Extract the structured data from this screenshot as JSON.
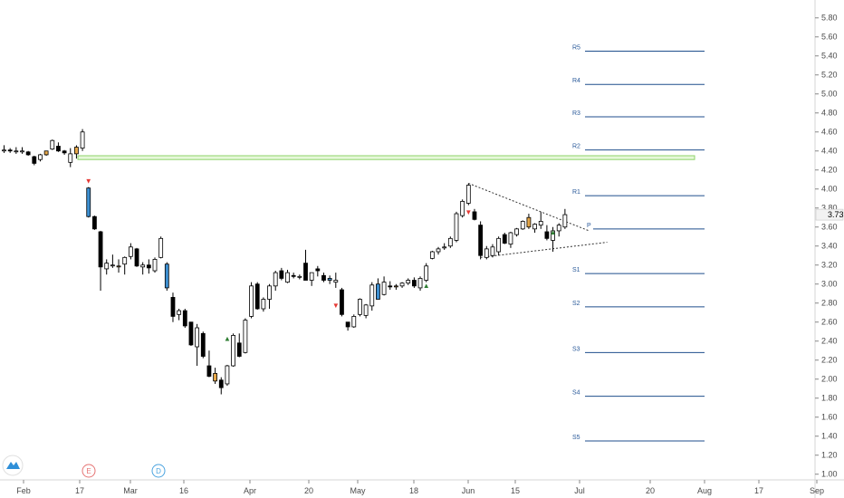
{
  "chart_data": {
    "type": "candlestick",
    "y_axis": {
      "ticks": [
        1.0,
        1.2,
        1.4,
        1.6,
        1.8,
        2.0,
        2.2,
        2.4,
        2.6,
        2.8,
        3.0,
        3.2,
        3.4,
        3.6,
        3.8,
        4.0,
        4.2,
        4.4,
        4.6,
        4.8,
        5.0,
        5.2,
        5.4,
        5.6,
        5.8
      ],
      "tick_labels": [
        "1.00",
        "1.20",
        "1.40",
        "1.60",
        "1.80",
        "2.00",
        "2.20",
        "2.40",
        "2.60",
        "2.80",
        "3.00",
        "3.20",
        "3.40",
        "3.60",
        "3.80",
        "4.00",
        "4.20",
        "4.40",
        "4.60",
        "4.80",
        "5.00",
        "5.20",
        "5.40",
        "5.60",
        "5.80"
      ],
      "ylim": [
        0.94,
        5.95
      ],
      "position": "right"
    },
    "x_axis": {
      "tick_labels": [
        "Feb",
        "17",
        "Mar",
        "16",
        "Apr",
        "20",
        "May",
        "18",
        "Jun",
        "15",
        "Jul",
        "20",
        "Aug",
        "17",
        "Sep"
      ]
    },
    "last_price": {
      "value": 3.73,
      "label": "3.73"
    },
    "pivots": [
      {
        "name": "R5",
        "value": 5.45
      },
      {
        "name": "R4",
        "value": 5.1
      },
      {
        "name": "R3",
        "value": 4.76
      },
      {
        "name": "R2",
        "value": 4.41
      },
      {
        "name": "R1",
        "value": 3.93
      },
      {
        "name": "P",
        "value": 3.58
      },
      {
        "name": "S1",
        "value": 3.11
      },
      {
        "name": "S2",
        "value": 2.76
      },
      {
        "name": "S3",
        "value": 2.28
      },
      {
        "name": "S4",
        "value": 1.82
      },
      {
        "name": "S5",
        "value": 1.35
      }
    ],
    "resistance_zone": {
      "from": 4.31,
      "to": 4.35
    },
    "trendlines": [
      {
        "from": {
          "bar": 77,
          "value": 4.06
        },
        "to": {
          "bar": 97,
          "value": 3.56
        }
      },
      {
        "from": {
          "bar": 79,
          "value": 3.28
        },
        "to": {
          "bar": 100,
          "value": 3.44
        }
      }
    ],
    "candles": [
      [
        4.4,
        4.46,
        4.38,
        4.41
      ],
      [
        4.41,
        4.43,
        4.38,
        4.4
      ],
      [
        4.4,
        4.44,
        4.37,
        4.4
      ],
      [
        4.39,
        4.44,
        4.37,
        4.4
      ],
      [
        4.39,
        4.4,
        4.35,
        4.36
      ],
      [
        4.34,
        4.35,
        4.25,
        4.27
      ],
      [
        4.31,
        4.37,
        4.29,
        4.36
      ],
      [
        4.36,
        4.4,
        4.35,
        4.4
      ],
      [
        4.42,
        4.52,
        4.41,
        4.51
      ],
      [
        4.45,
        4.49,
        4.39,
        4.4
      ],
      [
        4.4,
        4.41,
        4.36,
        4.38
      ],
      [
        4.28,
        4.43,
        4.23,
        4.37
      ],
      [
        4.37,
        4.46,
        4.32,
        4.44
      ],
      [
        4.43,
        4.63,
        4.4,
        4.6
      ],
      [
        4.01,
        4.02,
        3.7,
        3.71
      ],
      [
        3.71,
        3.72,
        3.57,
        3.58
      ],
      [
        3.55,
        3.56,
        2.93,
        3.18
      ],
      [
        3.16,
        3.26,
        3.1,
        3.22
      ],
      [
        3.2,
        3.31,
        3.17,
        3.2
      ],
      [
        3.18,
        3.26,
        3.12,
        3.19
      ],
      [
        3.21,
        3.29,
        3.1,
        3.28
      ],
      [
        3.29,
        3.43,
        3.26,
        3.39
      ],
      [
        3.37,
        3.38,
        3.18,
        3.19
      ],
      [
        3.18,
        3.23,
        3.1,
        3.2
      ],
      [
        3.2,
        3.26,
        3.11,
        3.17
      ],
      [
        3.14,
        3.28,
        3.12,
        3.26
      ],
      [
        3.28,
        3.5,
        3.27,
        3.48
      ],
      [
        3.21,
        3.23,
        2.93,
        2.96
      ],
      [
        2.86,
        2.91,
        2.6,
        2.66
      ],
      [
        2.68,
        2.74,
        2.62,
        2.72
      ],
      [
        2.72,
        2.74,
        2.54,
        2.56
      ],
      [
        2.6,
        2.6,
        2.35,
        2.36
      ],
      [
        2.34,
        2.58,
        2.14,
        2.54
      ],
      [
        2.48,
        2.5,
        2.22,
        2.24
      ],
      [
        2.14,
        2.3,
        2.02,
        2.03
      ],
      [
        2.06,
        2.12,
        1.95,
        1.98
      ],
      [
        1.99,
        2.02,
        1.84,
        1.91
      ],
      [
        1.95,
        2.15,
        1.93,
        2.14
      ],
      [
        2.14,
        2.48,
        2.13,
        2.46
      ],
      [
        2.38,
        2.48,
        2.23,
        2.24
      ],
      [
        2.28,
        2.64,
        2.27,
        2.62
      ],
      [
        2.66,
        3.02,
        2.64,
        2.98
      ],
      [
        3.0,
        3.02,
        2.73,
        2.74
      ],
      [
        2.74,
        2.86,
        2.71,
        2.84
      ],
      [
        2.84,
        3.0,
        2.74,
        2.98
      ],
      [
        2.98,
        3.14,
        2.93,
        3.12
      ],
      [
        3.14,
        3.17,
        3.04,
        3.06
      ],
      [
        3.02,
        3.15,
        3.01,
        3.12
      ],
      [
        3.09,
        3.12,
        3.06,
        3.08
      ],
      [
        3.08,
        3.1,
        3.05,
        3.08
      ],
      [
        3.22,
        3.36,
        3.04,
        3.04
      ],
      [
        3.04,
        3.1,
        2.98,
        3.12
      ],
      [
        3.16,
        3.19,
        3.08,
        3.14
      ],
      [
        3.09,
        3.12,
        3.02,
        3.04
      ],
      [
        3.04,
        3.09,
        3.0,
        3.06
      ],
      [
        3.02,
        3.12,
        2.96,
        3.04
      ],
      [
        2.94,
        2.96,
        2.66,
        2.68
      ],
      [
        2.6,
        2.6,
        2.51,
        2.55
      ],
      [
        2.55,
        2.68,
        2.54,
        2.66
      ],
      [
        2.68,
        2.85,
        2.66,
        2.84
      ],
      [
        2.67,
        2.79,
        2.64,
        2.78
      ],
      [
        2.77,
        3.02,
        2.72,
        2.99
      ],
      [
        3.0,
        3.06,
        2.84,
        2.84
      ],
      [
        2.89,
        3.08,
        2.88,
        3.02
      ],
      [
        2.98,
        3.03,
        2.94,
        2.97
      ],
      [
        2.97,
        3.0,
        2.94,
        2.98
      ],
      [
        2.98,
        3.02,
        2.96,
        3.01
      ],
      [
        3.01,
        3.06,
        2.99,
        3.04
      ],
      [
        3.04,
        3.07,
        2.96,
        2.98
      ],
      [
        2.96,
        3.08,
        2.93,
        3.06
      ],
      [
        3.04,
        3.22,
        3.02,
        3.19
      ],
      [
        3.27,
        3.35,
        3.26,
        3.34
      ],
      [
        3.34,
        3.39,
        3.31,
        3.37
      ],
      [
        3.38,
        3.43,
        3.36,
        3.39
      ],
      [
        3.4,
        3.5,
        3.38,
        3.48
      ],
      [
        3.46,
        3.76,
        3.44,
        3.74
      ],
      [
        3.72,
        3.89,
        3.7,
        3.87
      ],
      [
        3.85,
        4.06,
        3.83,
        4.04
      ],
      [
        3.76,
        3.79,
        3.67,
        3.68
      ],
      [
        3.62,
        3.66,
        3.26,
        3.3
      ],
      [
        3.28,
        3.4,
        3.26,
        3.37
      ],
      [
        3.3,
        3.42,
        3.28,
        3.39
      ],
      [
        3.34,
        3.5,
        3.3,
        3.48
      ],
      [
        3.52,
        3.54,
        3.42,
        3.43
      ],
      [
        3.42,
        3.55,
        3.38,
        3.54
      ],
      [
        3.52,
        3.59,
        3.5,
        3.58
      ],
      [
        3.58,
        3.67,
        3.57,
        3.66
      ],
      [
        3.7,
        3.74,
        3.58,
        3.6
      ],
      [
        3.58,
        3.64,
        3.54,
        3.63
      ],
      [
        3.62,
        3.76,
        3.58,
        3.66
      ],
      [
        3.55,
        3.62,
        3.46,
        3.48
      ],
      [
        3.46,
        3.6,
        3.34,
        3.56
      ],
      [
        3.56,
        3.64,
        3.5,
        3.62
      ],
      [
        3.6,
        3.79,
        3.58,
        3.73
      ]
    ],
    "candle_colors": {
      "up": "#ffffff",
      "down": "#000000",
      "highlight_orange": "#e6a84a",
      "highlight_blue": "#3d8fd1",
      "wick": "#000000"
    },
    "orange_candles": [
      7,
      12,
      19,
      35,
      65,
      87,
      94
    ],
    "blue_candles": [
      14,
      27,
      54,
      62
    ],
    "signal_markers": [
      {
        "bar": 14,
        "value": 4.06,
        "symbol": "▼",
        "color": "#e53935"
      },
      {
        "bar": 55,
        "value": 2.75,
        "symbol": "▼",
        "color": "#e53935"
      },
      {
        "bar": 77,
        "value": 3.73,
        "symbol": "▼",
        "color": "#e53935"
      },
      {
        "bar": 37,
        "value": 2.4,
        "symbol": "▲",
        "color": "#2e7d32"
      },
      {
        "bar": 70,
        "value": 2.96,
        "symbol": "▲",
        "color": "#2e7d32"
      },
      {
        "bar": 91,
        "value": 3.52,
        "symbol": "▲",
        "color": "#2e7d32"
      }
    ],
    "event_badges": [
      {
        "label": "E",
        "color": "#e57373"
      },
      {
        "label": "D",
        "color": "#4aa3df"
      }
    ],
    "colors": {
      "pivot_line": "#1f4e8c",
      "zone_fill": "#e6f7d9",
      "zone_stroke": "#8fd36a",
      "trendline": "#333333",
      "axis_text": "#4a4a4a"
    },
    "logo": {
      "name": "tradingview-logo-icon"
    }
  }
}
